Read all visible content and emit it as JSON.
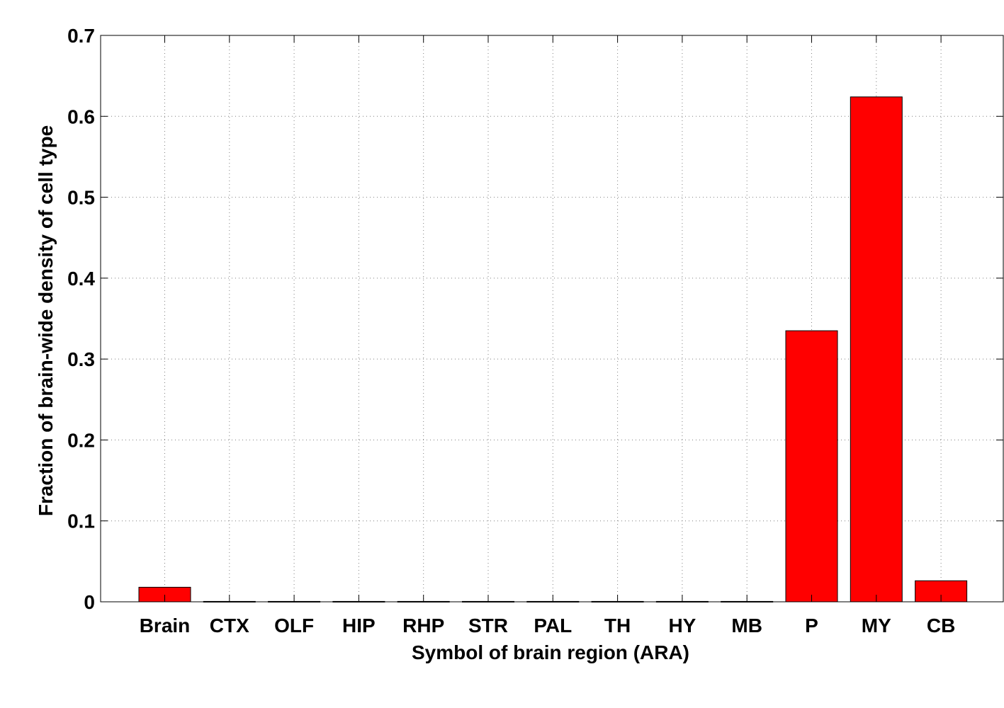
{
  "chart_data": {
    "type": "bar",
    "title": "",
    "xlabel": "Symbol of brain region (ARA)",
    "ylabel": "Fraction of brain-wide density of cell type",
    "categories": [
      "Brain",
      "CTX",
      "OLF",
      "HIP",
      "RHP",
      "STR",
      "PAL",
      "TH",
      "HY",
      "MB",
      "P",
      "MY",
      "CB"
    ],
    "values": [
      0.018,
      0.0005,
      0.0005,
      0.0005,
      0.0005,
      0.0005,
      0.0005,
      0.0005,
      0.0005,
      0.0005,
      0.335,
      0.624,
      0.026
    ],
    "ylim": [
      0,
      0.7
    ],
    "yticks": [
      "0",
      "0.1",
      "0.2",
      "0.3",
      "0.4",
      "0.5",
      "0.6",
      "0.7"
    ],
    "grid": true,
    "bar_color": "#ff0000",
    "grid_color": "#7f7f7f"
  }
}
